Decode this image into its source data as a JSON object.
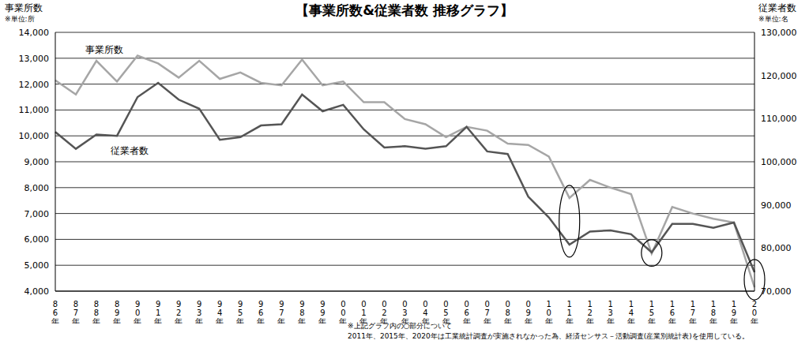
{
  "chart_data": {
    "type": "line",
    "title": "【事業所数&従業者数 推移グラフ】",
    "y_label": "事業所数",
    "y_unit": "※単位:所",
    "y2_label": "従業者数",
    "y2_unit": "※単位:名",
    "categories": [
      "86年",
      "87年",
      "88年",
      "89年",
      "90年",
      "91年",
      "92年",
      "93年",
      "94年",
      "95年",
      "96年",
      "97年",
      "98年",
      "99年",
      "00年",
      "01年",
      "02年",
      "03年",
      "04年",
      "05年",
      "06年",
      "07年",
      "08年",
      "09年",
      "10年",
      "11年",
      "12年",
      "13年",
      "14年",
      "15年",
      "16年",
      "17年",
      "18年",
      "19年",
      "20年"
    ],
    "series": [
      {
        "name": "事業所数",
        "color": "#a6a6a6",
        "axis": "y",
        "values": [
          12150,
          11600,
          12900,
          12100,
          13100,
          12800,
          12250,
          12900,
          12200,
          12450,
          12050,
          11950,
          12950,
          11950,
          12100,
          11300,
          11300,
          10650,
          10450,
          9950,
          10350,
          10200,
          9700,
          9650,
          9200,
          7600,
          8300,
          8000,
          7750,
          5450,
          7250,
          7000,
          6800,
          6650,
          4150
        ]
      },
      {
        "name": "従業者数",
        "color": "#555555",
        "axis": "y2",
        "values": [
          106900,
          103000,
          106300,
          106000,
          115000,
          118300,
          114400,
          112300,
          105100,
          105700,
          108400,
          108700,
          115600,
          111700,
          113200,
          107500,
          103300,
          103600,
          103000,
          103600,
          108100,
          102400,
          101800,
          91900,
          87100,
          80800,
          83800,
          84100,
          83200,
          79000,
          85600,
          85600,
          84700,
          85900,
          74400
        ]
      }
    ],
    "ylim": [
      4000,
      14000
    ],
    "yticks": [
      {
        "value": 4000,
        "label": "4,000"
      },
      {
        "value": 5000,
        "label": "5,000"
      },
      {
        "value": 6000,
        "label": "6,000"
      },
      {
        "value": 7000,
        "label": "7,000"
      },
      {
        "value": 8000,
        "label": "8,000"
      },
      {
        "value": 9000,
        "label": "9,000"
      },
      {
        "value": 10000,
        "label": "10,000"
      },
      {
        "value": 11000,
        "label": "11,000"
      },
      {
        "value": 12000,
        "label": "12,000"
      },
      {
        "value": 13000,
        "label": "13,000"
      },
      {
        "value": 14000,
        "label": "14,000"
      }
    ],
    "y2lim": [
      70000,
      130000
    ],
    "y2ticks": [
      {
        "value": 70000,
        "label": "70,000"
      },
      {
        "value": 80000,
        "label": "80,000"
      },
      {
        "value": 90000,
        "label": "90,000"
      },
      {
        "value": 100000,
        "label": "100,000"
      },
      {
        "value": 110000,
        "label": "110,000"
      },
      {
        "value": 120000,
        "label": "120,000"
      },
      {
        "value": 130000,
        "label": "130,000"
      }
    ],
    "grid": true,
    "annotations": {
      "circled": [
        "11年",
        "15年",
        "20年"
      ],
      "note": [
        "※上記グラフ内の○部分について",
        "2011年、2015年、2020年は工業統計調査が実施されなかった為、経済センサス－活動調査(産業別統計表)を使用している。"
      ]
    }
  }
}
